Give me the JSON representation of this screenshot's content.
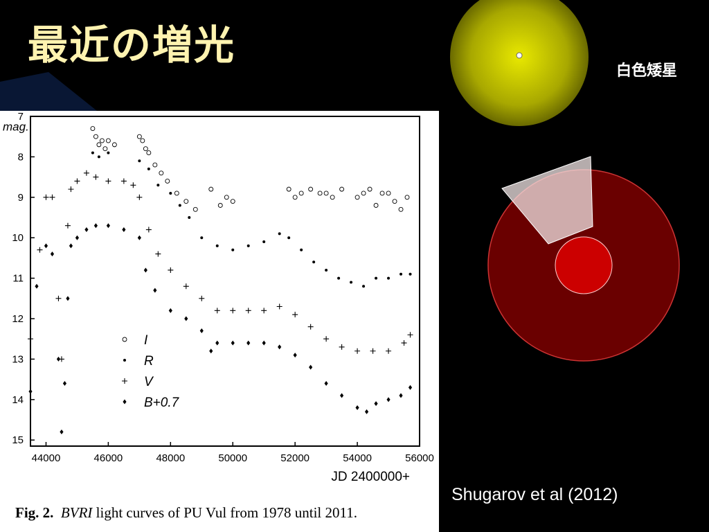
{
  "slide": {
    "title": "最近の増光",
    "white_dwarf_label": "白色矮星",
    "citation": "Shugarov et al (2012)"
  },
  "colors": {
    "background": "#000000",
    "title": "#fff3b0",
    "white_dwarf_glow": "#c8c800",
    "red_giant": "#6a0000",
    "red_giant_core": "#cc0000",
    "accretion_cone": "#f2e6e6"
  },
  "icons": {
    "white_dwarf": "white-dwarf-icon",
    "red_giant": "red-giant-icon",
    "accretion_cone": "accretion-stream-icon"
  },
  "figure": {
    "caption_number": "Fig. 2.",
    "caption_em": "BVRI",
    "caption_text": " light curves of PU Vul from 1978 until 2011."
  },
  "chart_data": {
    "type": "scatter",
    "title": "",
    "xlabel": "JD 2400000+",
    "ylabel": "mag.",
    "xlim": [
      43500,
      56000
    ],
    "ylim": [
      15.15,
      7
    ],
    "y_inverted": true,
    "x_ticks": [
      44000,
      46000,
      48000,
      50000,
      52000,
      54000,
      56000
    ],
    "y_ticks": [
      7,
      8,
      9,
      10,
      11,
      12,
      13,
      14,
      15
    ],
    "grid": false,
    "legend_position": "lower-left-inside",
    "series": [
      {
        "name": "I",
        "marker": "open-circle",
        "x": [
          45500,
          45600,
          45700,
          45800,
          45900,
          46000,
          46200,
          47000,
          47100,
          47200,
          47300,
          47500,
          47700,
          47900,
          48200,
          48500,
          48800,
          49300,
          49600,
          49800,
          50000,
          51800,
          52000,
          52200,
          52500,
          52800,
          53000,
          53200,
          53500,
          54000,
          54200,
          54400,
          54600,
          54800,
          55000,
          55200,
          55400,
          55600
        ],
        "y": [
          7.3,
          7.5,
          7.7,
          7.6,
          7.8,
          7.6,
          7.7,
          7.5,
          7.6,
          7.8,
          7.9,
          8.2,
          8.4,
          8.6,
          8.9,
          9.1,
          9.3,
          8.8,
          9.2,
          9.0,
          9.1,
          8.8,
          9.0,
          8.9,
          8.8,
          8.9,
          8.9,
          9.0,
          8.8,
          9.0,
          8.9,
          8.8,
          9.2,
          8.9,
          8.9,
          9.1,
          9.3,
          9.0
        ]
      },
      {
        "name": "R",
        "marker": "dot",
        "x": [
          45500,
          45700,
          46000,
          47000,
          47300,
          47600,
          48000,
          48300,
          48600,
          49000,
          49500,
          50000,
          50500,
          51000,
          51500,
          51800,
          52200,
          52600,
          53000,
          53400,
          53800,
          54200,
          54600,
          55000,
          55400,
          55700
        ],
        "y": [
          7.9,
          8.0,
          7.9,
          8.1,
          8.3,
          8.7,
          8.9,
          9.2,
          9.5,
          10.0,
          10.2,
          10.3,
          10.2,
          10.1,
          9.9,
          10.0,
          10.3,
          10.6,
          10.8,
          11.0,
          11.1,
          11.2,
          11.0,
          11.0,
          10.9,
          10.9
        ]
      },
      {
        "name": "V",
        "marker": "plus",
        "x": [
          43500,
          43800,
          44000,
          44200,
          44400,
          44500,
          44700,
          44800,
          45000,
          45300,
          45600,
          46000,
          46500,
          46800,
          47000,
          47300,
          47600,
          48000,
          48500,
          49000,
          49500,
          50000,
          50500,
          51000,
          51500,
          52000,
          52500,
          53000,
          53500,
          54000,
          54500,
          55000,
          55500,
          55700
        ],
        "y": [
          12.5,
          10.3,
          9.0,
          9.0,
          11.5,
          13.0,
          9.7,
          8.8,
          8.6,
          8.4,
          8.5,
          8.6,
          8.6,
          8.7,
          9.0,
          9.8,
          10.4,
          10.8,
          11.2,
          11.5,
          11.8,
          11.8,
          11.8,
          11.8,
          11.7,
          11.9,
          12.2,
          12.5,
          12.7,
          12.8,
          12.8,
          12.8,
          12.6,
          12.4
        ]
      },
      {
        "name": "B+0.7",
        "marker": "diamond",
        "x": [
          43500,
          43700,
          44000,
          44200,
          44400,
          44500,
          44600,
          44700,
          44800,
          45000,
          45300,
          45600,
          46000,
          46500,
          47000,
          47200,
          47500,
          48000,
          48500,
          49000,
          49300,
          49500,
          50000,
          50500,
          51000,
          51500,
          52000,
          52500,
          53000,
          53500,
          54000,
          54300,
          54600,
          55000,
          55400,
          55700
        ],
        "y": [
          13.8,
          11.2,
          10.2,
          10.4,
          13.0,
          14.8,
          13.6,
          11.5,
          10.2,
          10.0,
          9.8,
          9.7,
          9.7,
          9.8,
          10.0,
          10.8,
          11.3,
          11.8,
          12.0,
          12.3,
          12.8,
          12.6,
          12.6,
          12.6,
          12.6,
          12.7,
          12.9,
          13.2,
          13.6,
          13.9,
          14.2,
          14.3,
          14.1,
          14.0,
          13.9,
          13.7
        ]
      }
    ]
  }
}
